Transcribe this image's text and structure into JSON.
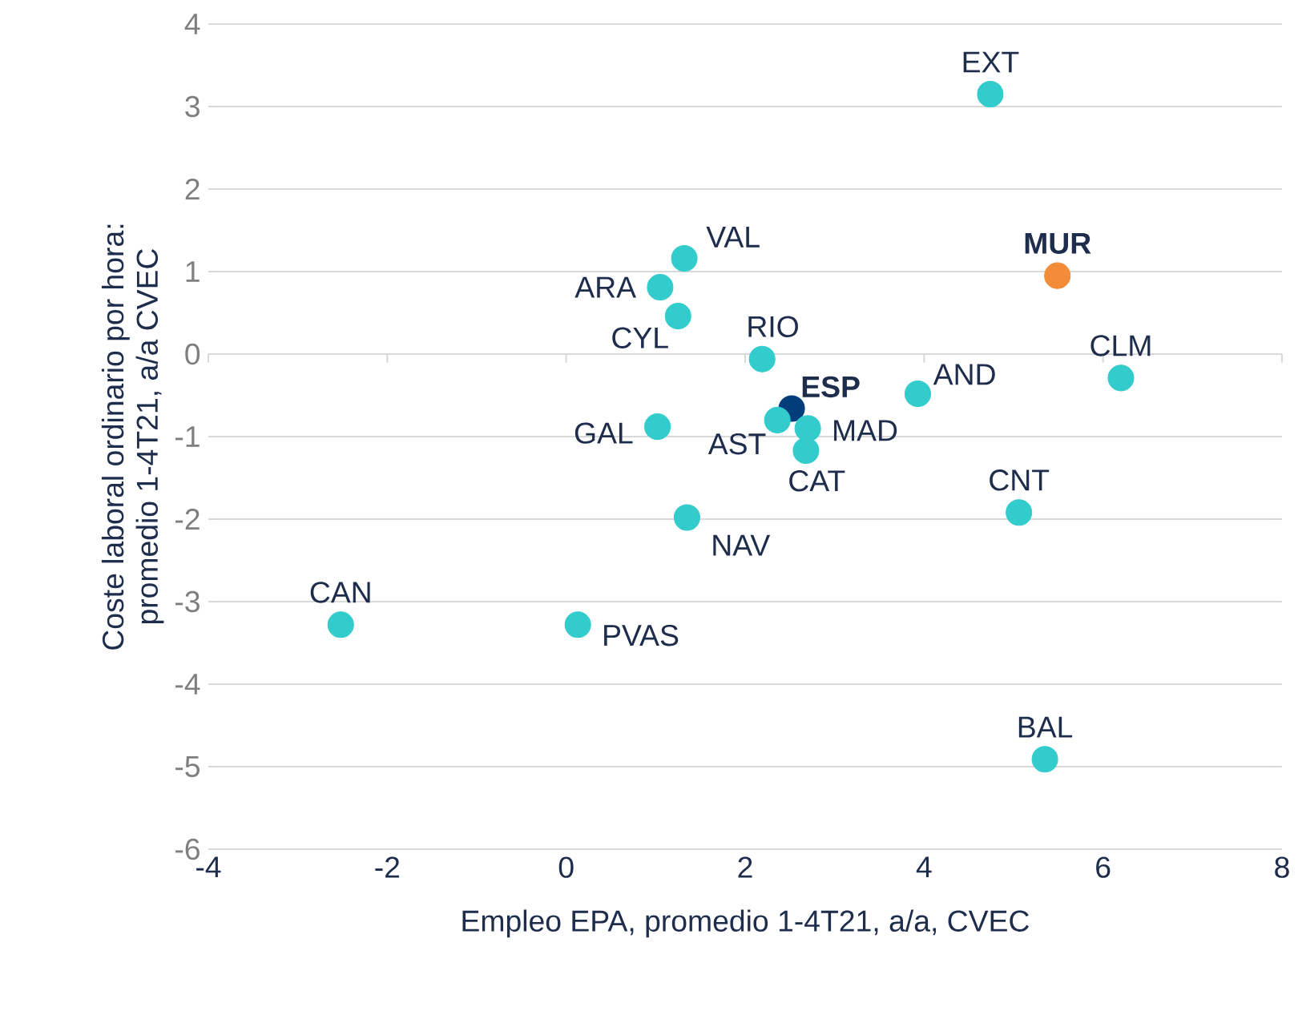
{
  "chart_data": {
    "type": "scatter",
    "xlabel": "Empleo EPA, promedio 1-4T21,  a/a, CVEC",
    "ylabel": "Coste laboral ordinario  por hora:\npromedio 1-4T21,  a/a CVEC",
    "xlim": [
      -4,
      8
    ],
    "xticks": [
      -4,
      -2,
      0,
      2,
      4,
      6,
      8
    ],
    "ylim": [
      -6,
      4
    ],
    "yticks": [
      -6,
      -5,
      -4,
      -3,
      -2,
      -1,
      0,
      1,
      2,
      3,
      4
    ],
    "grid": "y",
    "series": [
      {
        "name": "EXT",
        "color": "#33cccc",
        "x": [
          4.74
        ],
        "values": [
          3.15
        ]
      },
      {
        "name": "MUR",
        "color": "#f28c38",
        "x": [
          5.49
        ],
        "values": [
          0.95
        ]
      },
      {
        "name": "CLM",
        "color": "#33cccc",
        "x": [
          6.2
        ],
        "values": [
          -0.29
        ]
      },
      {
        "name": "AND",
        "color": "#33cccc",
        "x": [
          3.93
        ],
        "values": [
          -0.48
        ]
      },
      {
        "name": "CNT",
        "color": "#33cccc",
        "x": [
          5.06
        ],
        "values": [
          -1.92
        ]
      },
      {
        "name": "BAL",
        "color": "#33cccc",
        "x": [
          5.35
        ],
        "values": [
          -4.91
        ]
      },
      {
        "name": "CAN",
        "color": "#33cccc",
        "x": [
          -2.52
        ],
        "values": [
          -3.28
        ]
      },
      {
        "name": "PVAS",
        "color": "#33cccc",
        "x": [
          0.13
        ],
        "values": [
          -3.28
        ]
      },
      {
        "name": "NAV",
        "color": "#33cccc",
        "x": [
          1.35
        ],
        "values": [
          -1.98
        ]
      },
      {
        "name": "GAL",
        "color": "#33cccc",
        "x": [
          1.02
        ],
        "values": [
          -0.88
        ]
      },
      {
        "name": "ARA",
        "color": "#33cccc",
        "x": [
          1.05
        ],
        "values": [
          0.81
        ]
      },
      {
        "name": "VAL",
        "color": "#33cccc",
        "x": [
          1.32
        ],
        "values": [
          1.16
        ]
      },
      {
        "name": "CYL",
        "color": "#33cccc",
        "x": [
          1.25
        ],
        "values": [
          0.46
        ]
      },
      {
        "name": "RIO",
        "color": "#33cccc",
        "x": [
          2.19
        ],
        "values": [
          -0.06
        ]
      },
      {
        "name": "ESP",
        "color": "#003d7a",
        "x": [
          2.52
        ],
        "values": [
          -0.66
        ]
      },
      {
        "name": "AST",
        "color": "#33cccc",
        "x": [
          2.36
        ],
        "values": [
          -0.8
        ]
      },
      {
        "name": "MAD",
        "color": "#33cccc",
        "x": [
          2.7
        ],
        "values": [
          -0.9
        ]
      },
      {
        "name": "CAT",
        "color": "#33cccc",
        "x": [
          2.68
        ],
        "values": [
          -1.17
        ]
      }
    ]
  }
}
